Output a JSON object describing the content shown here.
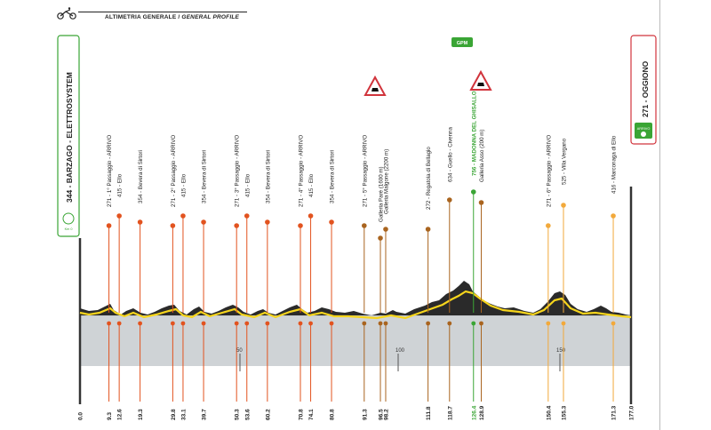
{
  "header": {
    "title_it": "ALTIMETRIA GENERALE",
    "title_sep": " / ",
    "title_en": "GENERAL PROFILE"
  },
  "start": {
    "label": "344 - BARZAGO - ELETTROSYSTEM",
    "badge": "Km 0"
  },
  "finish": {
    "label": "271 - OGGIONO",
    "badge": "ARRIVO"
  },
  "gpm": {
    "label": "GPM"
  },
  "colors": {
    "orange": "#e2531f",
    "light_orange": "#f2a93b",
    "brown": "#a9641f",
    "green": "#3aa535",
    "yellow": "#f6d51c",
    "ground": "#cfd3d6",
    "profile": "#2a2a2a"
  },
  "km_markers": [
    "50",
    "100",
    "150"
  ],
  "points": [
    {
      "km": "0.0",
      "label": "",
      "color": "#000000"
    },
    {
      "km": "9.3",
      "label": "271 - 1° Passaggio - ARRIVO",
      "color": "#e2531f"
    },
    {
      "km": "12.6",
      "label": "415 - Ello",
      "color": "#e2531f"
    },
    {
      "km": "19.3",
      "label": "354 - Bevera di Sirtori",
      "color": "#e2531f"
    },
    {
      "km": "29.8",
      "label": "271 - 2° Passaggio - ARRIVO",
      "color": "#e2531f"
    },
    {
      "km": "33.1",
      "label": "415 - Ello",
      "color": "#e2531f"
    },
    {
      "km": "39.7",
      "label": "354 - Bevera di Sirtori",
      "color": "#e2531f"
    },
    {
      "km": "50.3",
      "label": "271 - 3° Passaggio - ARRIVO",
      "color": "#e2531f"
    },
    {
      "km": "53.6",
      "label": "415 - Ello",
      "color": "#e2531f"
    },
    {
      "km": "60.2",
      "label": "354 - Bevera di Sirtori",
      "color": "#e2531f"
    },
    {
      "km": "70.8",
      "label": "271 - 4° Passaggio - ARRIVO",
      "color": "#e2531f"
    },
    {
      "km": "74.1",
      "label": "415 - Ello",
      "color": "#e2531f"
    },
    {
      "km": "80.8",
      "label": "354 - Bevera di Sirtori",
      "color": "#e2531f"
    },
    {
      "km": "91.3",
      "label": "271 - 5° Passaggio - ARRIVO",
      "color": "#a9641f"
    },
    {
      "km": "96.5",
      "label": "Galleria Parè (1600 m)",
      "color": "#a9641f"
    },
    {
      "km": "98.2",
      "label": "Galleria Malgone (2200 m)",
      "color": "#a9641f"
    },
    {
      "km": "111.8",
      "label": "272 - Regatola di Bellagio",
      "color": "#a9641f"
    },
    {
      "km": "118.7",
      "label": "634 - Guello - Civenna",
      "color": "#a9641f"
    },
    {
      "km": "126.4",
      "label": "756 - MADONNA DEL GHISALLO",
      "color": "#3aa535"
    },
    {
      "km": "128.9",
      "label": "Galleria Asso (200 m)",
      "color": "#a9641f"
    },
    {
      "km": "150.4",
      "label": "271 - 6° Passaggio - ARRIVO",
      "color": "#f2a93b"
    },
    {
      "km": "155.3",
      "label": "525 - Villa Vergano",
      "color": "#f2a93b"
    },
    {
      "km": "171.3",
      "label": "416 - Marconaga di Ello",
      "color": "#f2a93b"
    },
    {
      "km": "177.0",
      "label": "",
      "color": "#000000"
    }
  ]
}
